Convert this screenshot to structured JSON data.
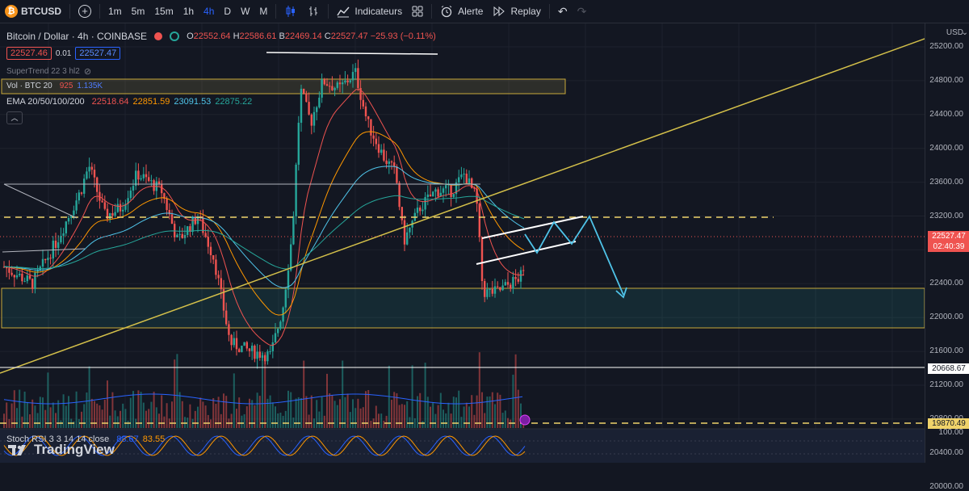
{
  "toolbar": {
    "symbol": "BTCUSD",
    "symbol_logo": "₿",
    "timeframes": [
      "1m",
      "5m",
      "15m",
      "1h",
      "4h",
      "D",
      "W",
      "M"
    ],
    "active_timeframe": "4h",
    "indicators_label": "Indicateurs",
    "alert_label": "Alerte",
    "replay_label": "Replay"
  },
  "legend": {
    "title": "Bitcoin / Dollar · 4h · COINBASE",
    "ohlc": {
      "o_label": "O",
      "o": "22552.64",
      "h_label": "H",
      "h": "22586.61",
      "b_label": "B",
      "b": "22469.14",
      "c_label": "C",
      "c": "22527.47",
      "change": "−25.93 (−0.11%)"
    },
    "bid": "22527.46",
    "spread": "0.01",
    "ask": "22527.47",
    "supertrend": "SuperTrend 22 3 hl2",
    "vol_label": "Vol · BTC 20",
    "vol_values": [
      "925",
      "1.135K"
    ],
    "ema_label": "EMA 20/50/100/200",
    "ema_values": [
      "22518.64",
      "22851.59",
      "23091.53",
      "22875.22"
    ],
    "stoch_label": "Stoch RSI 3 3 14 14 close",
    "stoch_values": [
      "88.67",
      "83.55"
    ]
  },
  "price_axis": {
    "currency": "USD",
    "ticks": [
      "25200.00",
      "24800.00",
      "24400.00",
      "24000.00",
      "23600.00",
      "23200.00",
      "22800.00",
      "22400.00",
      "22000.00",
      "21600.00",
      "21200.00",
      "20800.00",
      "20400.00",
      "20000.00"
    ],
    "current_price": "22527.47",
    "countdown": "02:40:39",
    "tag_white": "20668.67",
    "tag_yellow": "19870.49",
    "stoch_tick": "100.00"
  },
  "brand": "TradingView",
  "colors": {
    "bg": "#131722",
    "up": "#26a69a",
    "down": "#ef5350",
    "accent": "#2962ff",
    "yellow": "#f0d36a",
    "cyan": "#4fc3e8"
  }
}
